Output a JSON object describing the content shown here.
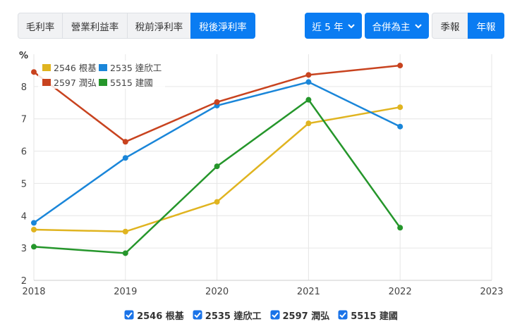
{
  "tabs": [
    "毛利率",
    "營業利益率",
    "稅前淨利率",
    "稅後淨利率"
  ],
  "range_select": "近 5 年",
  "consolidation_select": "合併為主",
  "period_tabs": [
    "季報",
    "年報"
  ],
  "chart_data": {
    "type": "line",
    "ylabel": "%",
    "x": [
      2018,
      2019,
      2020,
      2021,
      2022
    ],
    "xlim": [
      2018,
      2023
    ],
    "xticks": [
      2018,
      2019,
      2020,
      2021,
      2022,
      2023
    ],
    "ylim": [
      2,
      9
    ],
    "yticks": [
      2,
      3,
      4,
      5,
      6,
      7,
      8
    ],
    "grid": true,
    "series": [
      {
        "name": "2546 根基",
        "color": "#e0b420",
        "values": [
          3.57,
          3.51,
          4.43,
          6.86,
          7.36
        ]
      },
      {
        "name": "2535 達欣工",
        "color": "#1a86d9",
        "values": [
          3.78,
          5.79,
          7.41,
          8.14,
          6.76
        ]
      },
      {
        "name": "2597 潤弘",
        "color": "#c8431f",
        "values": [
          8.45,
          6.29,
          7.52,
          8.36,
          8.65
        ]
      },
      {
        "name": "5515 建國",
        "color": "#25962b",
        "values": [
          3.04,
          2.84,
          5.53,
          7.59,
          3.63
        ]
      }
    ]
  }
}
